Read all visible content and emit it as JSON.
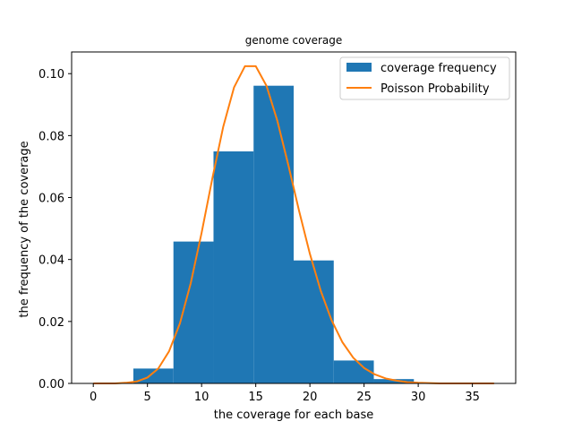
{
  "chart_data": {
    "type": "bar",
    "title": "genome coverage",
    "xlabel": "the coverage for each base",
    "ylabel": "the frequency of the coverage",
    "xlim": [
      -2,
      39
    ],
    "ylim": [
      0,
      0.107
    ],
    "xticks": [
      0,
      5,
      10,
      15,
      20,
      25,
      30,
      35
    ],
    "yticks": [
      0.0,
      0.02,
      0.04,
      0.06,
      0.08,
      0.1
    ],
    "ytick_labels": [
      "0.00",
      "0.02",
      "0.04",
      "0.06",
      "0.08",
      "0.10"
    ],
    "legend_position": "top-right",
    "histogram": {
      "name": "coverage frequency",
      "color": "#1f77b4",
      "bins": [
        {
          "x0": 3.7,
          "x1": 7.4,
          "value": 0.0048
        },
        {
          "x0": 7.4,
          "x1": 11.1,
          "value": 0.0458
        },
        {
          "x0": 11.1,
          "x1": 14.8,
          "value": 0.0749
        },
        {
          "x0": 14.8,
          "x1": 18.5,
          "value": 0.0961
        },
        {
          "x0": 18.5,
          "x1": 22.2,
          "value": 0.0397
        },
        {
          "x0": 22.2,
          "x1": 25.9,
          "value": 0.0074
        },
        {
          "x0": 25.9,
          "x1": 29.6,
          "value": 0.0014
        }
      ]
    },
    "line": {
      "name": "Poisson Probability",
      "color": "#ff7f0e",
      "x": [
        0,
        1,
        2,
        3,
        4,
        5,
        6,
        7,
        8,
        9,
        10,
        11,
        12,
        13,
        14,
        15,
        16,
        17,
        18,
        19,
        20,
        21,
        22,
        23,
        24,
        25,
        26,
        27,
        28,
        29,
        30,
        31,
        32,
        33,
        34,
        35,
        36,
        37
      ],
      "y": [
        0.0,
        0.0,
        0.0,
        0.0002,
        0.0006,
        0.0019,
        0.0048,
        0.0104,
        0.0194,
        0.0324,
        0.0486,
        0.0663,
        0.0829,
        0.0956,
        0.1024,
        0.1024,
        0.096,
        0.0847,
        0.0706,
        0.0557,
        0.0418,
        0.0299,
        0.0204,
        0.0133,
        0.0083,
        0.005,
        0.0029,
        0.0016,
        0.0009,
        0.0004,
        0.0002,
        0.0001,
        0.0,
        0.0,
        0.0,
        0.0,
        0.0,
        0.0
      ]
    }
  }
}
